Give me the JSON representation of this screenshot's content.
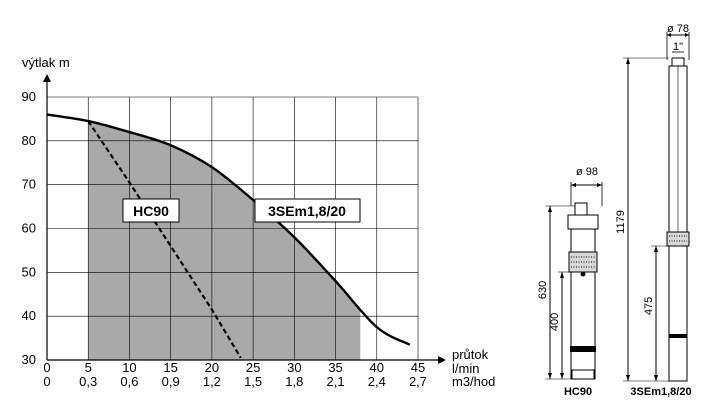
{
  "chart_data": {
    "type": "line",
    "ylabel": "výtlak  m",
    "xlabel": "průtok",
    "x_units": [
      "l/min",
      "m3/hod"
    ],
    "x_ticks_lmin": [
      "5",
      "10",
      "15",
      "20",
      "25",
      "30",
      "35",
      "40",
      "45"
    ],
    "x_ticks_m3h": [
      "0",
      "0,3",
      "0,6",
      "0,9",
      "1,2",
      "1,5",
      "1,8",
      "2,1",
      "2,4",
      "2,7"
    ],
    "x_origin_label": "0",
    "y_ticks": [
      "30",
      "40",
      "50",
      "60",
      "70",
      "80",
      "90"
    ],
    "xlim": [
      0,
      45
    ],
    "ylim": [
      30,
      90
    ],
    "grid": true,
    "shaded_region_x": [
      5,
      38
    ],
    "series": [
      {
        "name": "3SEm1,8/20",
        "style": "solid",
        "x": [
          0,
          5,
          10,
          15,
          20,
          25,
          30,
          35,
          40,
          44
        ],
        "y": [
          86,
          84.5,
          82,
          79,
          74,
          66.5,
          58,
          48,
          37.5,
          33.5
        ]
      },
      {
        "name": "HC90",
        "style": "dashed",
        "x": [
          5,
          10,
          15,
          20,
          23.5
        ],
        "y": [
          84.5,
          70.5,
          56,
          41.5,
          30.5
        ]
      }
    ]
  },
  "drawing": {
    "hc90_diameter": "ø 98",
    "hc90_height": "630",
    "hc90_inner": "400",
    "hc90_name": "HC90",
    "se_diameter": "ø 78",
    "se_thread": "1\"",
    "se_height": "1179",
    "se_inner": "475",
    "se_name": "3SEm1,8/20"
  },
  "colors": {
    "shade": "#a9a9a9",
    "line": "#000000",
    "grid": "#000000"
  }
}
